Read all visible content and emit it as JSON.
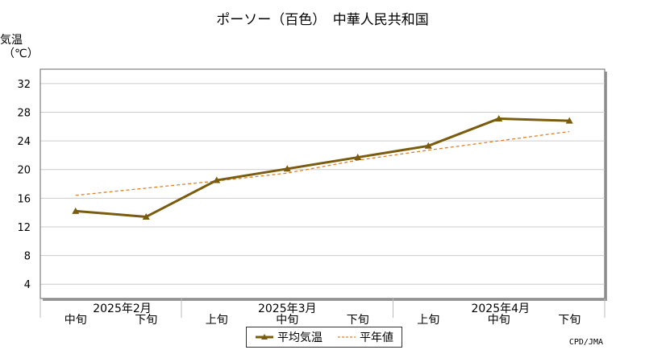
{
  "colors": {
    "mean": "#7a5c0e",
    "normal": "#e0812a",
    "grid": "#cccccc",
    "axis": "#888888"
  },
  "chart_data": {
    "type": "line",
    "title": "ポーソー（百色）　中華人民共和国",
    "ylabel": "気温",
    "yunit": "（℃）",
    "ylim": [
      2,
      34
    ],
    "yticks": [
      "32",
      "28",
      "24",
      "20",
      "16",
      "12",
      "8",
      "4"
    ],
    "categories": [
      "2025年2月中旬",
      "2025年2月下旬",
      "2025年3月上旬",
      "2025年3月中旬",
      "2025年3月下旬",
      "2025年4月上旬",
      "2025年4月中旬",
      "2025年4月下旬"
    ],
    "x_dekad_labels": [
      "中旬",
      "下旬",
      "上旬",
      "中旬",
      "下旬",
      "上旬",
      "中旬",
      "下旬"
    ],
    "x_month_labels": [
      "2025年2月",
      "2025年3月",
      "2025年4月"
    ],
    "series": [
      {
        "name": "平均気温",
        "style": "solid-triangle",
        "values": [
          14.2,
          13.4,
          18.5,
          20.1,
          21.7,
          23.3,
          27.1,
          26.8
        ]
      },
      {
        "name": "平年値",
        "style": "dashed",
        "values": [
          16.4,
          17.4,
          18.4,
          19.5,
          21.3,
          22.7,
          24.0,
          25.3
        ]
      }
    ],
    "grid": true,
    "legend_position": "bottom-center"
  },
  "credit": "CPD/JMA"
}
